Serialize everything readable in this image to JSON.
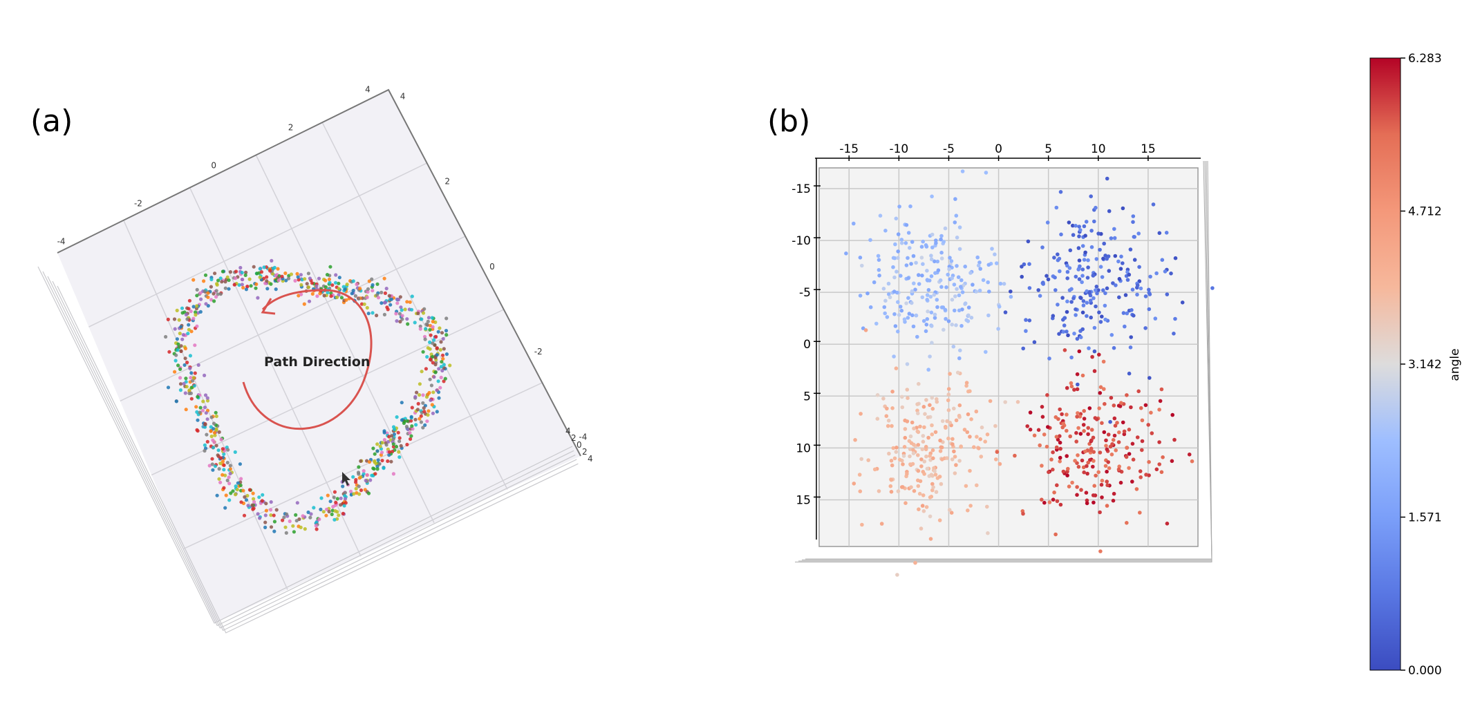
{
  "panels": {
    "a": {
      "label": "(a)"
    },
    "b": {
      "label": "(b)"
    }
  },
  "chart_data": [
    {
      "type": "scatter",
      "panel": "(a)",
      "description_visible": "3D scatter of multicolored points forming a closed loop",
      "annotation": "Path Direction",
      "axis_ticks": {
        "top_edge": [
          "-4",
          "-2",
          "0",
          "2",
          "4"
        ],
        "right_edge": [
          "4",
          "2",
          "0",
          "-2",
          "-4"
        ],
        "depth": [
          "4",
          "2",
          "0",
          "2",
          "4"
        ]
      },
      "point_colors": [
        "#d62728",
        "#1f77b4",
        "#2ca02c",
        "#ff7f0e",
        "#9467bd",
        "#8c564b",
        "#e377c2",
        "#7f7f7f",
        "#bcbd22",
        "#17becf"
      ],
      "arrow_color": "#d9534f",
      "grid": true
    },
    {
      "type": "scatter",
      "panel": "(b)",
      "x_ticks": [
        "-15",
        "-10",
        "-5",
        "0",
        "5",
        "10",
        "15"
      ],
      "y_ticks": [
        "-15",
        "-10",
        "-5",
        "0",
        "5",
        "10",
        "15"
      ],
      "xlim": [
        -18,
        20
      ],
      "ylim": [
        -17,
        19.5
      ],
      "grid": true,
      "clusters": [
        {
          "center": [
            -7,
            -6
          ],
          "angle_range": [
            1.7,
            2.9
          ],
          "count": 230
        },
        {
          "center": [
            10,
            -6
          ],
          "angle_range": [
            0.0,
            1.3
          ],
          "count": 230
        },
        {
          "center": [
            -7,
            10
          ],
          "angle_range": [
            3.4,
            4.5
          ],
          "count": 230
        },
        {
          "center": [
            10,
            10
          ],
          "angle_range": [
            5.2,
            6.28
          ],
          "count": 230
        }
      ],
      "colorbar": {
        "label": "angle",
        "ticks": [
          "0.000",
          "1.571",
          "3.142",
          "4.712",
          "6.283"
        ],
        "range": [
          0,
          6.283
        ],
        "colormap": "coolwarm"
      }
    }
  ]
}
